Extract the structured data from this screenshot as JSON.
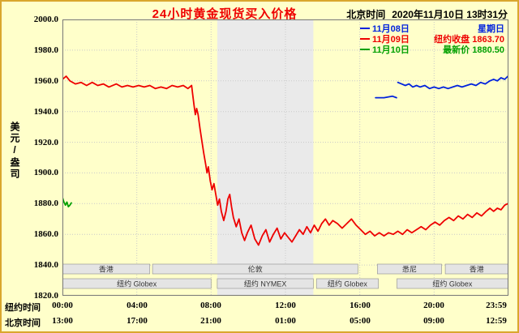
{
  "colors": {
    "background": "#ffffca",
    "frame": "#d9a62e",
    "title_red": "#ee0000",
    "grid": "#c9c9c9",
    "band": "#eaeaea",
    "plot_border": "#777777",
    "session_bar_fill": "#e4e4e4",
    "session_bar_border": "#999999"
  },
  "header": {
    "title": "24小时黄金现货买入价格",
    "clock_label": "北京时间",
    "clock_value": "2020年11月10日 13时31分"
  },
  "legend": {
    "items": [
      {
        "date": "11月08日",
        "info": "星期日",
        "color": "#0022dd"
      },
      {
        "date": "11月09日",
        "info": "纽约收盘 1863.70",
        "color": "#ee0000"
      },
      {
        "date": "11月10日",
        "info": "最新价 1880.50",
        "color": "#00a000"
      }
    ]
  },
  "axes": {
    "y_label": "美元/盎司",
    "y_ticks": [
      "2000.0",
      "1980.0",
      "1960.0",
      "1940.0",
      "1920.0",
      "1900.0",
      "1880.0",
      "1860.0",
      "1840.0",
      "1820.0"
    ],
    "x_rows": [
      {
        "label": "纽约时间",
        "ticks": [
          "00:00",
          "04:00",
          "08:00",
          "12:00",
          "16:00",
          "20:00",
          "23:59"
        ]
      },
      {
        "label": "北京时间",
        "ticks": [
          "13:00",
          "17:00",
          "21:00",
          "01:00",
          "05:00",
          "09:00",
          "12:59"
        ]
      }
    ]
  },
  "sessions": [
    {
      "label": "香港",
      "row": 0,
      "start": 0,
      "end": 4.7
    },
    {
      "label": "伦敦",
      "row": 0,
      "start": 4.85,
      "end": 15.9
    },
    {
      "label": "悉尼",
      "row": 0,
      "start": 16.95,
      "end": 20.4
    },
    {
      "label": "香港",
      "row": 0,
      "start": 20.6,
      "end": 23.97
    },
    {
      "label": "纽约 Globex",
      "row": 1,
      "start": 0,
      "end": 8.0
    },
    {
      "label": "纽约 NYMEX",
      "row": 1,
      "start": 8.33,
      "end": 13.5
    },
    {
      "label": "纽约 Globex",
      "row": 1,
      "start": 13.67,
      "end": 17.0
    },
    {
      "label": "纽约 Globex",
      "row": 1,
      "start": 18.0,
      "end": 23.97
    }
  ],
  "chart_data": {
    "type": "line",
    "title": "24小时黄金现货买入价格",
    "ylabel": "美元/盎司",
    "ylim": [
      1820,
      2000
    ],
    "y_step": 20,
    "xlim_hours": [
      0,
      24
    ],
    "x_axis_note": "x in New York hours; Beijing time shown on second row",
    "grid": true,
    "legend_position": "top-right",
    "highlight_band_hours": [
      8.33,
      13.5
    ],
    "ny_close": 1863.7,
    "latest_price": 1880.5,
    "series": [
      {
        "name": "11月08日 星期日",
        "color": "#0022dd",
        "segments": [
          [
            [
              16.85,
              1949
            ],
            [
              17.3,
              1949
            ],
            [
              17.75,
              1950
            ],
            [
              17.98,
              1949
            ]
          ],
          [
            [
              18.05,
              1959
            ],
            [
              18.25,
              1958
            ],
            [
              18.45,
              1957
            ],
            [
              18.65,
              1958
            ],
            [
              18.85,
              1956
            ],
            [
              19.05,
              1957
            ],
            [
              19.25,
              1956
            ],
            [
              19.5,
              1957
            ],
            [
              19.75,
              1955
            ],
            [
              20.0,
              1956
            ],
            [
              20.25,
              1955
            ],
            [
              20.5,
              1956
            ],
            [
              20.75,
              1955
            ],
            [
              21.0,
              1956
            ],
            [
              21.25,
              1957
            ],
            [
              21.5,
              1956
            ],
            [
              21.75,
              1957
            ],
            [
              22.0,
              1958
            ],
            [
              22.25,
              1957
            ],
            [
              22.5,
              1959
            ],
            [
              22.75,
              1958
            ],
            [
              23.0,
              1960
            ],
            [
              23.2,
              1961
            ],
            [
              23.4,
              1960
            ],
            [
              23.6,
              1962
            ],
            [
              23.8,
              1961
            ],
            [
              23.97,
              1963
            ]
          ]
        ]
      },
      {
        "name": "11月09日 纽约收盘 1863.70",
        "color": "#ee0000",
        "segments": [
          [
            [
              0,
              1961
            ],
            [
              0.2,
              1963
            ],
            [
              0.4,
              1960
            ],
            [
              0.7,
              1958
            ],
            [
              1.0,
              1959
            ],
            [
              1.3,
              1957
            ],
            [
              1.6,
              1959
            ],
            [
              1.9,
              1957
            ],
            [
              2.2,
              1958
            ],
            [
              2.5,
              1956
            ],
            [
              2.9,
              1958
            ],
            [
              3.2,
              1956
            ],
            [
              3.5,
              1957
            ],
            [
              3.8,
              1956
            ],
            [
              4.1,
              1957
            ],
            [
              4.4,
              1956
            ],
            [
              4.7,
              1957
            ],
            [
              5.0,
              1955
            ],
            [
              5.3,
              1956
            ],
            [
              5.6,
              1955
            ],
            [
              5.9,
              1957
            ],
            [
              6.2,
              1956
            ],
            [
              6.5,
              1957
            ],
            [
              6.75,
              1955
            ],
            [
              6.95,
              1957
            ],
            [
              7.0,
              1952
            ],
            [
              7.08,
              1944
            ],
            [
              7.15,
              1938
            ],
            [
              7.22,
              1942
            ],
            [
              7.3,
              1938
            ],
            [
              7.4,
              1929
            ],
            [
              7.5,
              1921
            ],
            [
              7.6,
              1913
            ],
            [
              7.7,
              1906
            ],
            [
              7.78,
              1900
            ],
            [
              7.85,
              1904
            ],
            [
              7.95,
              1895
            ],
            [
              8.05,
              1889
            ],
            [
              8.15,
              1893
            ],
            [
              8.25,
              1886
            ],
            [
              8.35,
              1879
            ],
            [
              8.45,
              1883
            ],
            [
              8.55,
              1875
            ],
            [
              8.68,
              1869
            ],
            [
              8.8,
              1875
            ],
            [
              8.9,
              1883
            ],
            [
              9.0,
              1886
            ],
            [
              9.1,
              1878
            ],
            [
              9.2,
              1871
            ],
            [
              9.35,
              1865
            ],
            [
              9.5,
              1870
            ],
            [
              9.65,
              1861
            ],
            [
              9.8,
              1856
            ],
            [
              9.95,
              1861
            ],
            [
              10.15,
              1866
            ],
            [
              10.35,
              1857
            ],
            [
              10.55,
              1853
            ],
            [
              10.75,
              1859
            ],
            [
              10.95,
              1863
            ],
            [
              11.15,
              1855
            ],
            [
              11.35,
              1860
            ],
            [
              11.55,
              1864
            ],
            [
              11.75,
              1857
            ],
            [
              11.95,
              1861
            ],
            [
              12.15,
              1858
            ],
            [
              12.35,
              1855
            ],
            [
              12.55,
              1859
            ],
            [
              12.75,
              1863
            ],
            [
              12.95,
              1860
            ],
            [
              13.15,
              1865
            ],
            [
              13.35,
              1861
            ],
            [
              13.55,
              1866
            ],
            [
              13.75,
              1862
            ],
            [
              13.95,
              1867
            ],
            [
              14.15,
              1870
            ],
            [
              14.35,
              1866
            ],
            [
              14.55,
              1869
            ],
            [
              14.8,
              1867
            ],
            [
              15.05,
              1864
            ],
            [
              15.3,
              1867
            ],
            [
              15.55,
              1870
            ],
            [
              15.8,
              1866
            ],
            [
              16.05,
              1863
            ],
            [
              16.3,
              1860
            ],
            [
              16.55,
              1862
            ],
            [
              16.8,
              1859
            ],
            [
              17.05,
              1861
            ],
            [
              17.3,
              1859
            ],
            [
              17.55,
              1861
            ],
            [
              17.8,
              1860
            ],
            [
              18.05,
              1862
            ],
            [
              18.3,
              1860
            ],
            [
              18.55,
              1863
            ],
            [
              18.8,
              1861
            ],
            [
              19.05,
              1863
            ],
            [
              19.3,
              1865
            ],
            [
              19.55,
              1863
            ],
            [
              19.8,
              1866
            ],
            [
              20.05,
              1868
            ],
            [
              20.3,
              1866
            ],
            [
              20.55,
              1869
            ],
            [
              20.8,
              1871
            ],
            [
              21.05,
              1869
            ],
            [
              21.3,
              1872
            ],
            [
              21.55,
              1870
            ],
            [
              21.8,
              1873
            ],
            [
              22.05,
              1871
            ],
            [
              22.3,
              1874
            ],
            [
              22.55,
              1872
            ],
            [
              22.8,
              1875
            ],
            [
              23.0,
              1877
            ],
            [
              23.2,
              1875
            ],
            [
              23.4,
              1877
            ],
            [
              23.6,
              1876
            ],
            [
              23.8,
              1879
            ],
            [
              23.97,
              1880
            ]
          ]
        ]
      },
      {
        "name": "11月10日 最新价 1880.50",
        "color": "#00a000",
        "segments": [
          [
            [
              0,
              1884
            ],
            [
              0.08,
              1881
            ],
            [
              0.16,
              1879
            ],
            [
              0.24,
              1881
            ],
            [
              0.32,
              1878
            ],
            [
              0.4,
              1879
            ],
            [
              0.48,
              1880.5
            ]
          ]
        ]
      }
    ]
  }
}
